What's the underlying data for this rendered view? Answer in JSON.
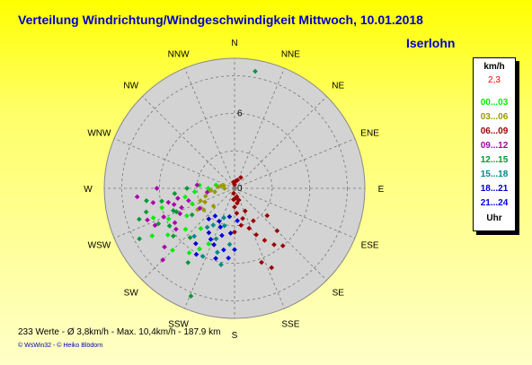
{
  "title": "Verteilung Windrichtung/Windgeschwindigkeit  Mittwoch, 10.01.2018",
  "location": "Iserlohn",
  "legend": {
    "unit": "km/h",
    "value": "2,3",
    "items": [
      {
        "label": "00...03",
        "color": "#00ee00"
      },
      {
        "label": "03...06",
        "color": "#999900"
      },
      {
        "label": "06...09",
        "color": "#990000"
      },
      {
        "label": "09...12",
        "color": "#aa00aa"
      },
      {
        "label": "12...15",
        "color": "#009933"
      },
      {
        "label": "15...18",
        "color": "#008888"
      },
      {
        "label": "18...21",
        "color": "#0000cc"
      },
      {
        "label": "21...24",
        "color": "#0000ee"
      }
    ],
    "footer": "Uhr"
  },
  "stats": "233 Werte   -   Ø 3,8km/h  -  Max. 10,4km/h   -   187.9 km",
  "credit": "© WsWin32   -  © Heiko Blödorn",
  "chart_data": {
    "type": "scatter",
    "coordinate_system": "polar",
    "r_max": 10.4,
    "ring_values": [
      0,
      3,
      6,
      9
    ],
    "ring_labels": [
      {
        "value": 0,
        "text": "0"
      },
      {
        "value": 6,
        "text": "6"
      }
    ],
    "directions": [
      "N",
      "NNE",
      "NE",
      "ENE",
      "E",
      "ESE",
      "SE",
      "SSE",
      "S",
      "SSW",
      "SW",
      "WSW",
      "W",
      "WNW",
      "NW",
      "NNW"
    ],
    "points_note": "direction in degrees (0 = N, clockwise), speed in km/h; color by time bucket",
    "series": [
      {
        "bucket": "00...03",
        "color": "#00ee00",
        "points": [
          [
            205,
            4.9
          ],
          [
            210,
            5.6
          ],
          [
            215,
            6.3
          ],
          [
            220,
            4.2
          ],
          [
            225,
            7.0
          ],
          [
            230,
            5.1
          ],
          [
            235,
            6.5
          ],
          [
            240,
            4.4
          ],
          [
            245,
            5.8
          ],
          [
            250,
            3.6
          ],
          [
            255,
            6.0
          ],
          [
            260,
            4.0
          ],
          [
            265,
            3.2
          ],
          [
            270,
            2.1
          ],
          [
            275,
            2.8
          ],
          [
            280,
            1.5
          ],
          [
            240,
            7.6
          ],
          [
            250,
            6.9
          ]
        ]
      },
      {
        "bucket": "03...06",
        "color": "#999900",
        "points": [
          [
            270,
            0.8
          ],
          [
            275,
            1.3
          ],
          [
            280,
            1.1
          ],
          [
            260,
            1.6
          ],
          [
            255,
            2.4
          ],
          [
            245,
            2.6
          ],
          [
            235,
            3.0
          ],
          [
            240,
            3.4
          ],
          [
            250,
            2.9
          ],
          [
            265,
            1.9
          ],
          [
            285,
            0.9
          ],
          [
            230,
            2.2
          ]
        ]
      },
      {
        "bucket": "06...09",
        "color": "#990000",
        "points": [
          [
            0,
            0.3
          ],
          [
            10,
            0.6
          ],
          [
            350,
            0.5
          ],
          [
            170,
            1.2
          ],
          [
            175,
            2.0
          ],
          [
            165,
            2.5
          ],
          [
            160,
            3.4
          ],
          [
            155,
            4.1
          ],
          [
            150,
            4.8
          ],
          [
            145,
            5.5
          ],
          [
            140,
            6.0
          ],
          [
            180,
            1.5
          ],
          [
            185,
            0.9
          ],
          [
            190,
            0.4
          ],
          [
            165,
            0.7
          ],
          [
            175,
            0.8
          ],
          [
            160,
            1.0
          ],
          [
            155,
            2.0
          ],
          [
            170,
            3.0
          ],
          [
            180,
            3.5
          ],
          [
            150,
            3.0
          ],
          [
            135,
            4.8
          ],
          [
            130,
            3.4
          ],
          [
            30,
            1.0
          ],
          [
            20,
            0.7
          ],
          [
            160,
            6.3
          ],
          [
            155,
            7.0
          ]
        ]
      },
      {
        "bucket": "09...12",
        "color": "#aa00aa",
        "points": [
          [
            240,
            5.5
          ],
          [
            245,
            4.8
          ],
          [
            250,
            7.4
          ],
          [
            255,
            5.0
          ],
          [
            260,
            6.6
          ],
          [
            265,
            7.8
          ],
          [
            255,
            3.8
          ],
          [
            250,
            4.5
          ],
          [
            245,
            7.0
          ],
          [
            235,
            5.7
          ],
          [
            230,
            7.3
          ],
          [
            225,
            8.1
          ],
          [
            240,
            3.2
          ],
          [
            260,
            4.6
          ],
          [
            270,
            6.2
          ],
          [
            275,
            3.0
          ],
          [
            262,
            2.2
          ],
          [
            258,
            5.4
          ],
          [
            248,
            6.1
          ]
        ]
      },
      {
        "bucket": "12...15",
        "color": "#009933",
        "points": [
          [
            10,
            9.5
          ],
          [
            240,
            6.0
          ],
          [
            245,
            6.7
          ],
          [
            250,
            5.2
          ],
          [
            255,
            7.3
          ],
          [
            260,
            5.9
          ],
          [
            265,
            4.8
          ],
          [
            270,
            3.8
          ],
          [
            262,
            7.1
          ],
          [
            252,
            8.0
          ],
          [
            242,
            8.6
          ],
          [
            232,
            6.2
          ],
          [
            222,
            5.3
          ],
          [
            212,
            7.0
          ],
          [
            202,
            9.3
          ],
          [
            248,
            5.0
          ],
          [
            238,
            4.0
          ]
        ]
      },
      {
        "bucket": "15...18",
        "color": "#008888",
        "points": [
          [
            210,
            3.4
          ],
          [
            200,
            4.3
          ],
          [
            195,
            5.3
          ],
          [
            205,
            6.0
          ],
          [
            215,
            3.8
          ],
          [
            220,
            5.0
          ],
          [
            190,
            6.2
          ],
          [
            200,
            2.5
          ],
          [
            185,
            4.5
          ],
          [
            195,
            3.1
          ]
        ]
      },
      {
        "bucket": "18...21",
        "color": "#0000cc",
        "points": [
          [
            200,
            4.8
          ],
          [
            210,
            4.1
          ],
          [
            220,
            3.2
          ],
          [
            195,
            5.8
          ],
          [
            205,
            2.9
          ],
          [
            215,
            5.4
          ],
          [
            185,
            3.6
          ],
          [
            190,
            2.3
          ],
          [
            180,
            4.9
          ]
        ]
      },
      {
        "bucket": "21...24",
        "color": "#0000ee",
        "points": [
          [
            195,
            3.9
          ],
          [
            205,
            4.5
          ],
          [
            215,
            2.7
          ],
          [
            190,
            5.0
          ],
          [
            200,
            3.3
          ],
          [
            210,
            6.1
          ],
          [
            185,
            5.6
          ],
          [
            175,
            2.6
          ]
        ]
      }
    ]
  }
}
